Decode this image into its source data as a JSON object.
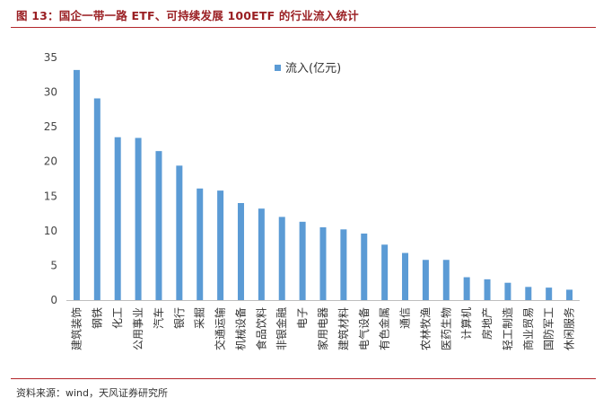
{
  "figure": {
    "title": "图 13：国企一带一路 ETF、可持续发展 100ETF 的行业流入统计",
    "source": "资料来源：wind，天风证券研究所"
  },
  "colors": {
    "bar": "#5b9bd5",
    "rule": "#b3262b",
    "title": "#9a1f23",
    "axis": "#bfbfbf"
  },
  "chart_data": {
    "type": "bar",
    "title": "",
    "xlabel": "",
    "ylabel": "",
    "ylim": [
      0,
      35
    ],
    "yticks": [
      0,
      5,
      10,
      15,
      20,
      25,
      30,
      35
    ],
    "grid": false,
    "legend_position": "top-center",
    "categories": [
      "建筑装饰",
      "钢铁",
      "化工",
      "公用事业",
      "汽车",
      "银行",
      "采掘",
      "交通运输",
      "机械设备",
      "食品饮料",
      "非银金融",
      "电子",
      "家用电器",
      "建筑材料",
      "电气设备",
      "有色金属",
      "通信",
      "农林牧渔",
      "医药生物",
      "计算机",
      "房地产",
      "轻工制造",
      "商业贸易",
      "国防军工",
      "休闲服务"
    ],
    "series": [
      {
        "name": "流入(亿元)",
        "values": [
          33.2,
          29.1,
          23.5,
          23.4,
          21.5,
          19.4,
          16.1,
          15.8,
          14.0,
          13.2,
          12.0,
          11.3,
          10.5,
          10.2,
          9.6,
          8.0,
          6.8,
          5.8,
          5.8,
          3.3,
          3.0,
          2.5,
          1.9,
          1.8,
          1.5
        ]
      }
    ]
  }
}
